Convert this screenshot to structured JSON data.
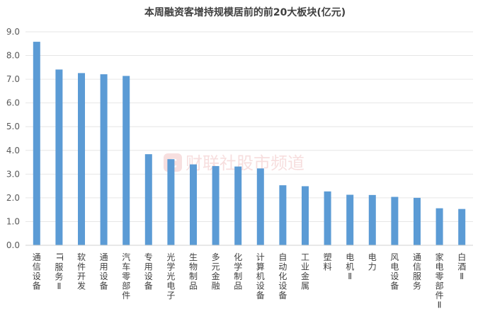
{
  "chart_data": {
    "type": "bar",
    "title": "本周融资客增持规模居前的前20大板块(亿元)",
    "xlabel": "",
    "ylabel": "",
    "ylim": [
      0,
      9
    ],
    "yticks": [
      "0.0",
      "1.0",
      "2.0",
      "3.0",
      "4.0",
      "5.0",
      "6.0",
      "7.0",
      "8.0",
      "9.0"
    ],
    "grid": true,
    "legend": "none",
    "bar_color": "#5b9bd5",
    "categories": [
      "通信设备",
      "IT服务Ⅱ",
      "软件开发",
      "通用设备",
      "汽车零部件",
      "专用设备",
      "光学光电子",
      "生物制品",
      "多元金融",
      "化学制品",
      "计算机设备",
      "自动化设备",
      "工业金属",
      "塑料",
      "电机Ⅱ",
      "电力",
      "风电设备",
      "通信服务",
      "家电零部件Ⅱ",
      "白酒Ⅱ"
    ],
    "values": [
      8.58,
      7.41,
      7.26,
      7.21,
      7.14,
      3.84,
      3.63,
      3.41,
      3.34,
      3.32,
      3.24,
      2.53,
      2.49,
      2.27,
      2.13,
      2.12,
      2.04,
      2.0,
      1.56,
      1.53
    ]
  },
  "watermark": {
    "text": "财联社股市频道",
    "logo_letter": "C",
    "color": "#e9a3a3"
  }
}
